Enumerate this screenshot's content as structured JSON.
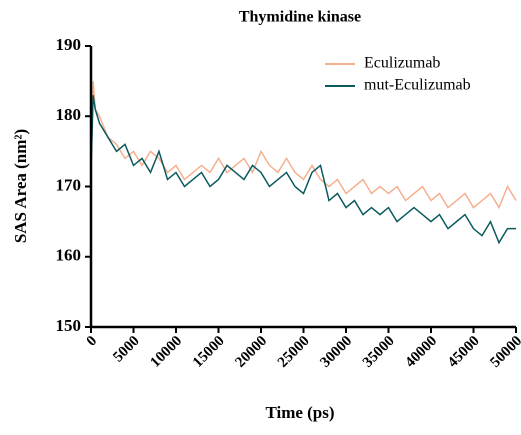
{
  "chart_data": {
    "type": "line",
    "title": "Thymidine kinase",
    "x_label": "Time (ps)",
    "y_label": "SAS Area (nm²)",
    "x": [
      0,
      250,
      500,
      1000,
      2000,
      3000,
      4000,
      5000,
      6000,
      7000,
      8000,
      9000,
      10000,
      11000,
      12000,
      13000,
      14000,
      15000,
      16000,
      17000,
      18000,
      19000,
      20000,
      21000,
      22000,
      23000,
      24000,
      25000,
      26000,
      27000,
      28000,
      29000,
      30000,
      31000,
      32000,
      33000,
      34000,
      35000,
      36000,
      37000,
      38000,
      39000,
      40000,
      41000,
      42000,
      43000,
      44000,
      45000,
      46000,
      47000,
      48000,
      49000,
      50000
    ],
    "series": [
      {
        "name": "Eculizumab",
        "color": "#f4b08f",
        "values": [
          172,
          185,
          181,
          180,
          177,
          176,
          174,
          175,
          173,
          175,
          174,
          172,
          173,
          171,
          172,
          173,
          172,
          174,
          172,
          173,
          174,
          172,
          175,
          173,
          172,
          174,
          172,
          171,
          173,
          171,
          170,
          171,
          169,
          170,
          171,
          169,
          170,
          169,
          170,
          168,
          169,
          170,
          168,
          169,
          167,
          168,
          169,
          167,
          168,
          169,
          167,
          170,
          168
        ]
      },
      {
        "name": "mut-Eculizumab",
        "color": "#0b5a5e",
        "values": [
          172,
          183,
          181,
          179,
          177,
          175,
          176,
          173,
          174,
          172,
          175,
          171,
          172,
          170,
          171,
          172,
          170,
          171,
          173,
          172,
          171,
          173,
          172,
          170,
          171,
          172,
          170,
          169,
          172,
          173,
          168,
          169,
          167,
          168,
          166,
          167,
          166,
          167,
          165,
          166,
          167,
          166,
          165,
          166,
          164,
          165,
          166,
          164,
          163,
          165,
          162,
          164,
          164
        ]
      }
    ],
    "xlim": [
      0,
      50000
    ],
    "ylim": [
      150,
      190
    ],
    "xticks": [
      0,
      5000,
      10000,
      15000,
      20000,
      25000,
      30000,
      35000,
      40000,
      45000,
      50000
    ],
    "yticks": [
      150,
      160,
      170,
      180,
      190
    ],
    "legend": "top-right"
  }
}
